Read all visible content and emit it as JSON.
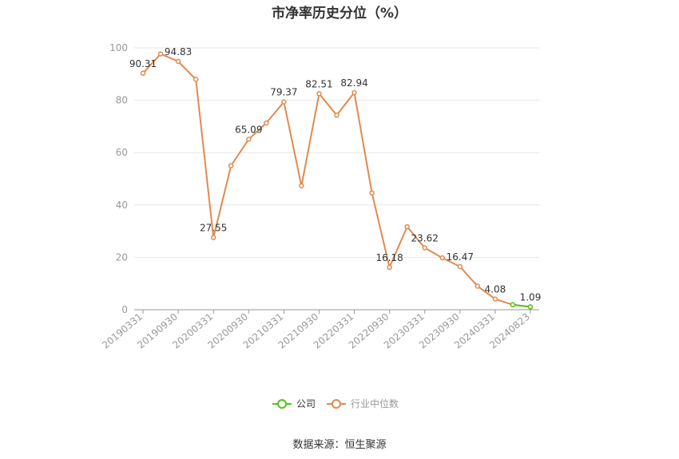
{
  "chart_data": {
    "type": "line",
    "title": "市净率历史分位（%）",
    "source": "数据来源：恒生聚源",
    "ylim": [
      0,
      100
    ],
    "yticks": [
      0,
      20,
      40,
      60,
      80,
      100
    ],
    "grid": true,
    "legend_position": "bottom-center",
    "xtick_labels": [
      "20190331",
      "20190930",
      "20200331",
      "20200930",
      "20210331",
      "20210930",
      "20220331",
      "20220930",
      "20230331",
      "20230930",
      "20240331",
      "20240823"
    ],
    "x": [
      "20190331",
      "20190630",
      "20190930",
      "20191231",
      "20200331",
      "20200630",
      "20200930",
      "20201231",
      "20210331",
      "20210630",
      "20210930",
      "20211231",
      "20220331",
      "20220630",
      "20220930",
      "20221231",
      "20230331",
      "20230630",
      "20230930",
      "20231231",
      "20240331",
      "20240630",
      "20240823"
    ],
    "series": [
      {
        "name": "公司",
        "color": "#52c41a",
        "values": [
          null,
          null,
          null,
          null,
          null,
          null,
          null,
          null,
          null,
          null,
          null,
          null,
          null,
          null,
          null,
          null,
          null,
          null,
          null,
          null,
          null,
          1.9,
          1.09
        ]
      },
      {
        "name": "行业中位数",
        "color": "#e08a4e",
        "values": [
          90.31,
          97.7,
          94.83,
          88.0,
          27.55,
          55.0,
          65.09,
          71.3,
          79.37,
          47.3,
          82.51,
          74.3,
          82.94,
          44.6,
          16.18,
          31.7,
          23.62,
          19.8,
          16.47,
          9.0,
          4.08,
          1.9,
          1.09
        ]
      }
    ],
    "data_labels": [
      {
        "index": 0,
        "text": "90.31"
      },
      {
        "index": 2,
        "text": "94.83"
      },
      {
        "index": 4,
        "text": "27.55"
      },
      {
        "index": 6,
        "text": "65.09"
      },
      {
        "index": 8,
        "text": "79.37"
      },
      {
        "index": 10,
        "text": "82.51"
      },
      {
        "index": 12,
        "text": "82.94"
      },
      {
        "index": 14,
        "text": "16.18"
      },
      {
        "index": 16,
        "text": "23.62"
      },
      {
        "index": 18,
        "text": "16.47"
      },
      {
        "index": 20,
        "text": "4.08"
      },
      {
        "index": 22,
        "text": "1.09"
      }
    ]
  }
}
